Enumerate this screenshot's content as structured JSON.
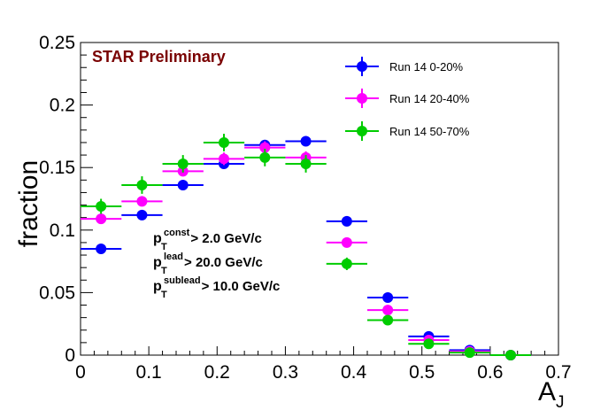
{
  "chart_data": {
    "type": "scatter",
    "title": "",
    "xlabel": "A",
    "xlabel_sub": "J",
    "ylabel": "fraction",
    "xlim": [
      0,
      0.7
    ],
    "ylim": [
      0,
      0.25
    ],
    "x_ticks": [
      0,
      0.1,
      0.2,
      0.3,
      0.4,
      0.5,
      0.6,
      0.7
    ],
    "x_tick_labels": [
      "0",
      "0.1",
      "0.2",
      "0.3",
      "0.4",
      "0.5",
      "0.6",
      "0.7"
    ],
    "y_ticks": [
      0,
      0.05,
      0.1,
      0.15,
      0.2,
      0.25
    ],
    "y_tick_labels": [
      "0",
      "0.05",
      "0.1",
      "0.15",
      "0.2",
      "0.25"
    ],
    "grid": false,
    "legend_position": "top-right",
    "x_bin_width": 0.06,
    "series": [
      {
        "name": "Run 14 0-20%",
        "color": "#0000ff",
        "x": [
          0.03,
          0.09,
          0.15,
          0.21,
          0.27,
          0.33,
          0.39,
          0.45,
          0.51,
          0.57,
          0.63
        ],
        "y": [
          0.085,
          0.112,
          0.136,
          0.153,
          0.168,
          0.171,
          0.107,
          0.046,
          0.015,
          0.004,
          0.0
        ],
        "yerr": [
          0.002,
          0.002,
          0.002,
          0.002,
          0.003,
          0.003,
          0.002,
          0.002,
          0.001,
          0.001,
          0.0
        ]
      },
      {
        "name": "Run 14 20-40%",
        "color": "#ff00ff",
        "x": [
          0.03,
          0.09,
          0.15,
          0.21,
          0.27,
          0.33,
          0.39,
          0.45,
          0.51,
          0.57,
          0.63
        ],
        "y": [
          0.109,
          0.123,
          0.147,
          0.157,
          0.166,
          0.158,
          0.09,
          0.036,
          0.012,
          0.003,
          0.0
        ],
        "yerr": [
          0.003,
          0.004,
          0.004,
          0.005,
          0.005,
          0.005,
          0.004,
          0.002,
          0.001,
          0.001,
          0.0
        ]
      },
      {
        "name": "Run 14 50-70%",
        "color": "#00cc00",
        "x": [
          0.03,
          0.09,
          0.15,
          0.21,
          0.27,
          0.33,
          0.39,
          0.45,
          0.51,
          0.57,
          0.63
        ],
        "y": [
          0.119,
          0.136,
          0.153,
          0.17,
          0.158,
          0.153,
          0.073,
          0.028,
          0.009,
          0.002,
          0.0
        ],
        "yerr": [
          0.006,
          0.007,
          0.007,
          0.007,
          0.007,
          0.007,
          0.005,
          0.003,
          0.002,
          0.001,
          0.0
        ]
      }
    ],
    "annotations": {
      "preliminary": "STAR Preliminary",
      "cuts": [
        {
          "base": "p",
          "sub": "T",
          "sup": "const",
          "rest": " > 2.0 GeV/c"
        },
        {
          "base": "p",
          "sub": "T",
          "sup": "lead",
          "rest": " > 20.0 GeV/c"
        },
        {
          "base": "p",
          "sub": "T",
          "sup": "sublead",
          "rest": " > 10.0 GeV/c"
        }
      ]
    }
  },
  "colors": {
    "preliminary": "#7a0000",
    "axis": "#000000"
  }
}
